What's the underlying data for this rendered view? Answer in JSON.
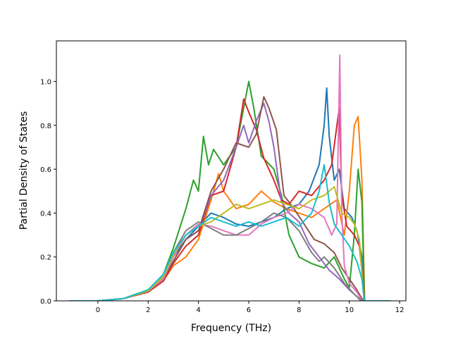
{
  "chart_data": {
    "type": "line",
    "xlabel": "Frequency (THz)",
    "ylabel": "Partial Density of States",
    "xlim": [
      -1.65,
      12.25
    ],
    "ylim": [
      0.0,
      1.185
    ],
    "xticks": [
      0,
      2,
      4,
      6,
      8,
      10,
      12
    ],
    "yticks": [
      0.0,
      0.2,
      0.4,
      0.6,
      0.8,
      1.0
    ],
    "xtick_labels": [
      "0",
      "2",
      "4",
      "6",
      "8",
      "10",
      "12"
    ],
    "ytick_labels": [
      "0.0",
      "0.2",
      "0.4",
      "0.6",
      "0.8",
      "1.0"
    ],
    "grid": false,
    "legend": "none",
    "series": [
      {
        "color": "#1f77b4",
        "points": [
          [
            -1.1,
            0
          ],
          [
            0,
            0
          ],
          [
            1,
            0.01
          ],
          [
            2,
            0.045
          ],
          [
            2.6,
            0.1
          ],
          [
            3,
            0.2
          ],
          [
            3.5,
            0.28
          ],
          [
            4,
            0.34
          ],
          [
            4.5,
            0.4
          ],
          [
            5,
            0.38
          ],
          [
            5.5,
            0.35
          ],
          [
            6,
            0.34
          ],
          [
            6.5,
            0.36
          ],
          [
            7,
            0.38
          ],
          [
            7.5,
            0.42
          ],
          [
            8,
            0.44
          ],
          [
            8.4,
            0.5
          ],
          [
            8.8,
            0.62
          ],
          [
            9.0,
            0.8
          ],
          [
            9.1,
            0.97
          ],
          [
            9.2,
            0.75
          ],
          [
            9.4,
            0.55
          ],
          [
            9.6,
            0.6
          ],
          [
            9.8,
            0.42
          ],
          [
            10.1,
            0.38
          ],
          [
            10.3,
            0.32
          ],
          [
            10.5,
            0.2
          ],
          [
            10.58,
            0.0
          ],
          [
            11.6,
            0
          ]
        ]
      },
      {
        "color": "#ff7f0e",
        "points": [
          [
            -1.1,
            0
          ],
          [
            0,
            0
          ],
          [
            1,
            0.01
          ],
          [
            2,
            0.04
          ],
          [
            2.6,
            0.09
          ],
          [
            3,
            0.16
          ],
          [
            3.5,
            0.2
          ],
          [
            4,
            0.28
          ],
          [
            4.5,
            0.46
          ],
          [
            4.8,
            0.58
          ],
          [
            5,
            0.5
          ],
          [
            5.5,
            0.42
          ],
          [
            6,
            0.44
          ],
          [
            6.5,
            0.5
          ],
          [
            7,
            0.45
          ],
          [
            7.5,
            0.42
          ],
          [
            8,
            0.4
          ],
          [
            8.5,
            0.38
          ],
          [
            9,
            0.42
          ],
          [
            9.5,
            0.46
          ],
          [
            9.8,
            0.3
          ],
          [
            10,
            0.5
          ],
          [
            10.2,
            0.8
          ],
          [
            10.35,
            0.84
          ],
          [
            10.5,
            0.55
          ],
          [
            10.6,
            0.05
          ],
          [
            10.62,
            0.0
          ],
          [
            11.6,
            0
          ]
        ]
      },
      {
        "color": "#2ca02c",
        "points": [
          [
            -1.1,
            0
          ],
          [
            0,
            0
          ],
          [
            1,
            0.01
          ],
          [
            2,
            0.05
          ],
          [
            2.6,
            0.12
          ],
          [
            3,
            0.24
          ],
          [
            3.5,
            0.42
          ],
          [
            3.8,
            0.55
          ],
          [
            4,
            0.5
          ],
          [
            4.2,
            0.75
          ],
          [
            4.4,
            0.62
          ],
          [
            4.6,
            0.69
          ],
          [
            5,
            0.62
          ],
          [
            5.5,
            0.7
          ],
          [
            6,
            1.0
          ],
          [
            6.2,
            0.88
          ],
          [
            6.5,
            0.66
          ],
          [
            7,
            0.6
          ],
          [
            7.3,
            0.48
          ],
          [
            7.6,
            0.3
          ],
          [
            8,
            0.2
          ],
          [
            8.5,
            0.17
          ],
          [
            9,
            0.15
          ],
          [
            9.4,
            0.2
          ],
          [
            9.8,
            0.1
          ],
          [
            10.0,
            0.06
          ],
          [
            10.2,
            0.3
          ],
          [
            10.35,
            0.6
          ],
          [
            10.5,
            0.45
          ],
          [
            10.6,
            0.0
          ],
          [
            11.6,
            0
          ]
        ]
      },
      {
        "color": "#d62728",
        "points": [
          [
            -1.1,
            0
          ],
          [
            0,
            0
          ],
          [
            1,
            0.01
          ],
          [
            2,
            0.04
          ],
          [
            2.6,
            0.09
          ],
          [
            3,
            0.17
          ],
          [
            3.5,
            0.25
          ],
          [
            4,
            0.3
          ],
          [
            4.5,
            0.48
          ],
          [
            5,
            0.5
          ],
          [
            5.5,
            0.7
          ],
          [
            5.8,
            0.92
          ],
          [
            6,
            0.86
          ],
          [
            6.3,
            0.78
          ],
          [
            6.6,
            0.65
          ],
          [
            7,
            0.55
          ],
          [
            7.3,
            0.46
          ],
          [
            7.6,
            0.44
          ],
          [
            8,
            0.5
          ],
          [
            8.5,
            0.48
          ],
          [
            9,
            0.55
          ],
          [
            9.3,
            0.62
          ],
          [
            9.6,
            0.88
          ],
          [
            9.7,
            0.48
          ],
          [
            9.9,
            0.34
          ],
          [
            10.2,
            0.3
          ],
          [
            10.4,
            0.25
          ],
          [
            10.55,
            0.08
          ],
          [
            10.6,
            0.0
          ],
          [
            11.6,
            0
          ]
        ]
      },
      {
        "color": "#9467bd",
        "points": [
          [
            -1.1,
            0
          ],
          [
            0,
            0
          ],
          [
            1,
            0.01
          ],
          [
            2,
            0.045
          ],
          [
            2.6,
            0.1
          ],
          [
            3,
            0.18
          ],
          [
            3.5,
            0.28
          ],
          [
            4,
            0.32
          ],
          [
            4.5,
            0.48
          ],
          [
            5,
            0.55
          ],
          [
            5.5,
            0.7
          ],
          [
            5.8,
            0.8
          ],
          [
            6,
            0.72
          ],
          [
            6.3,
            0.82
          ],
          [
            6.6,
            0.9
          ],
          [
            6.8,
            0.82
          ],
          [
            7,
            0.7
          ],
          [
            7.3,
            0.45
          ],
          [
            7.6,
            0.4
          ],
          [
            8,
            0.36
          ],
          [
            8.4,
            0.26
          ],
          [
            8.8,
            0.2
          ],
          [
            9.2,
            0.14
          ],
          [
            9.6,
            0.1
          ],
          [
            10,
            0.05
          ],
          [
            10.3,
            0.02
          ],
          [
            10.45,
            0.0
          ],
          [
            11.6,
            0
          ]
        ]
      },
      {
        "color": "#8c564b",
        "points": [
          [
            -1.1,
            0
          ],
          [
            0,
            0
          ],
          [
            1,
            0.01
          ],
          [
            2,
            0.045
          ],
          [
            2.6,
            0.1
          ],
          [
            3,
            0.18
          ],
          [
            3.5,
            0.28
          ],
          [
            4,
            0.32
          ],
          [
            4.5,
            0.5
          ],
          [
            5,
            0.6
          ],
          [
            5.5,
            0.72
          ],
          [
            6,
            0.7
          ],
          [
            6.3,
            0.76
          ],
          [
            6.6,
            0.93
          ],
          [
            6.8,
            0.88
          ],
          [
            7.1,
            0.78
          ],
          [
            7.4,
            0.48
          ],
          [
            7.8,
            0.42
          ],
          [
            8.2,
            0.35
          ],
          [
            8.6,
            0.28
          ],
          [
            9,
            0.26
          ],
          [
            9.4,
            0.22
          ],
          [
            9.7,
            0.15
          ],
          [
            10,
            0.1
          ],
          [
            10.3,
            0.05
          ],
          [
            10.55,
            0.0
          ],
          [
            11.6,
            0
          ]
        ]
      },
      {
        "color": "#e377c2",
        "points": [
          [
            -1.1,
            0
          ],
          [
            0,
            0
          ],
          [
            1,
            0.01
          ],
          [
            2,
            0.045
          ],
          [
            2.6,
            0.1
          ],
          [
            3,
            0.2
          ],
          [
            3.5,
            0.3
          ],
          [
            4,
            0.35
          ],
          [
            4.5,
            0.34
          ],
          [
            5,
            0.32
          ],
          [
            5.5,
            0.3
          ],
          [
            6,
            0.3
          ],
          [
            6.5,
            0.35
          ],
          [
            7,
            0.38
          ],
          [
            7.5,
            0.4
          ],
          [
            8,
            0.44
          ],
          [
            8.5,
            0.42
          ],
          [
            9,
            0.38
          ],
          [
            9.3,
            0.3
          ],
          [
            9.5,
            0.35
          ],
          [
            9.62,
            1.12
          ],
          [
            9.7,
            0.4
          ],
          [
            9.8,
            0.16
          ],
          [
            10,
            0.08
          ],
          [
            10.3,
            0.04
          ],
          [
            10.5,
            0.0
          ],
          [
            11.6,
            0
          ]
        ]
      },
      {
        "color": "#7f7f7f",
        "points": [
          [
            -1.1,
            0
          ],
          [
            0,
            0
          ],
          [
            1,
            0.01
          ],
          [
            2,
            0.045
          ],
          [
            2.6,
            0.11
          ],
          [
            3,
            0.22
          ],
          [
            3.5,
            0.32
          ],
          [
            4,
            0.36
          ],
          [
            4.5,
            0.33
          ],
          [
            5,
            0.3
          ],
          [
            5.5,
            0.3
          ],
          [
            6,
            0.33
          ],
          [
            6.5,
            0.36
          ],
          [
            7,
            0.4
          ],
          [
            7.5,
            0.38
          ],
          [
            8,
            0.32
          ],
          [
            8.5,
            0.22
          ],
          [
            8.8,
            0.18
          ],
          [
            9,
            0.2
          ],
          [
            9.4,
            0.15
          ],
          [
            9.8,
            0.08
          ],
          [
            10.2,
            0.03
          ],
          [
            10.5,
            0.0
          ],
          [
            11.6,
            0
          ]
        ]
      },
      {
        "color": "#bcbd22",
        "points": [
          [
            -1.1,
            0
          ],
          [
            0,
            0
          ],
          [
            1,
            0.01
          ],
          [
            2,
            0.045
          ],
          [
            2.6,
            0.11
          ],
          [
            3,
            0.21
          ],
          [
            3.5,
            0.3
          ],
          [
            4,
            0.34
          ],
          [
            4.5,
            0.36
          ],
          [
            5,
            0.4
          ],
          [
            5.5,
            0.44
          ],
          [
            6,
            0.42
          ],
          [
            6.5,
            0.44
          ],
          [
            7,
            0.46
          ],
          [
            7.5,
            0.44
          ],
          [
            8,
            0.42
          ],
          [
            8.5,
            0.46
          ],
          [
            9,
            0.48
          ],
          [
            9.4,
            0.52
          ],
          [
            9.7,
            0.4
          ],
          [
            10,
            0.38
          ],
          [
            10.2,
            0.35
          ],
          [
            10.4,
            0.28
          ],
          [
            10.55,
            0.05
          ],
          [
            10.6,
            0.0
          ],
          [
            11.6,
            0
          ]
        ]
      },
      {
        "color": "#17becf",
        "points": [
          [
            -1.1,
            0
          ],
          [
            0,
            0
          ],
          [
            1,
            0.01
          ],
          [
            2,
            0.05
          ],
          [
            2.6,
            0.12
          ],
          [
            3,
            0.22
          ],
          [
            3.5,
            0.3
          ],
          [
            4,
            0.34
          ],
          [
            4.5,
            0.38
          ],
          [
            5,
            0.36
          ],
          [
            5.5,
            0.34
          ],
          [
            6,
            0.36
          ],
          [
            6.5,
            0.34
          ],
          [
            7,
            0.36
          ],
          [
            7.5,
            0.38
          ],
          [
            8,
            0.34
          ],
          [
            8.5,
            0.4
          ],
          [
            8.8,
            0.5
          ],
          [
            9,
            0.62
          ],
          [
            9.2,
            0.45
          ],
          [
            9.4,
            0.35
          ],
          [
            9.7,
            0.3
          ],
          [
            10,
            0.25
          ],
          [
            10.3,
            0.18
          ],
          [
            10.5,
            0.1
          ],
          [
            10.6,
            0.0
          ],
          [
            11.6,
            0
          ]
        ]
      }
    ]
  }
}
